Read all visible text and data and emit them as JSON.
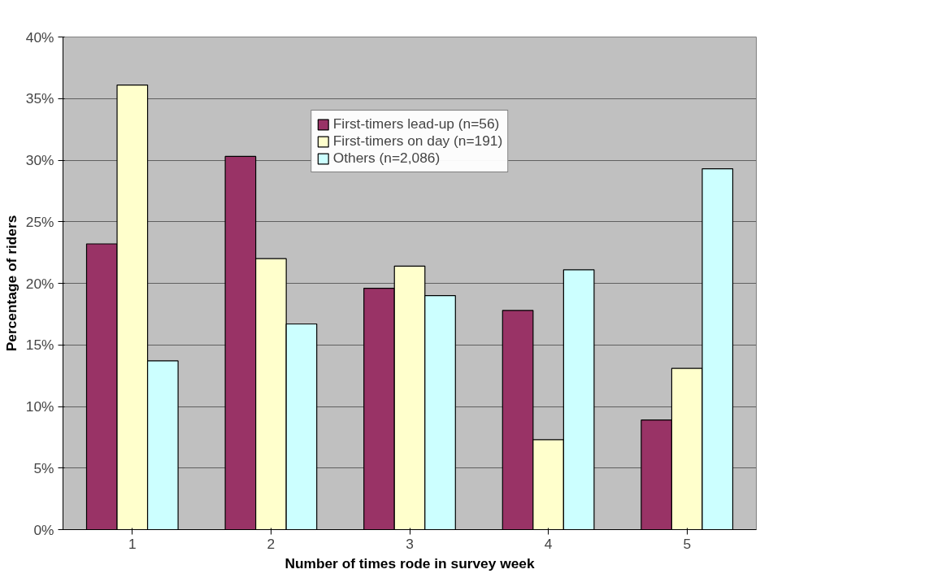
{
  "chart_data": {
    "type": "bar",
    "xlabel": "Number of times rode in survey week",
    "ylabel": "Percentage of riders",
    "categories": [
      "1",
      "2",
      "3",
      "4",
      "5"
    ],
    "series": [
      {
        "name": "First-timers lead-up (n=56)",
        "color": "#993366",
        "values": [
          23.2,
          30.3,
          19.6,
          17.8,
          8.9
        ]
      },
      {
        "name": "First-timers on day (n=191)",
        "color": "#ffffcc",
        "values": [
          36.1,
          22.0,
          21.4,
          7.3,
          13.1
        ]
      },
      {
        "name": "Others (n=2,086)",
        "color": "#ccffff",
        "values": [
          13.7,
          16.7,
          19.0,
          21.1,
          29.3
        ]
      }
    ],
    "ylim": [
      0,
      40
    ],
    "yticks": [
      {
        "value": 0,
        "label": "0%"
      },
      {
        "value": 5,
        "label": "5%"
      },
      {
        "value": 10,
        "label": "10%"
      },
      {
        "value": 15,
        "label": "15%"
      },
      {
        "value": 20,
        "label": "20%"
      },
      {
        "value": 25,
        "label": "25%"
      },
      {
        "value": 30,
        "label": "30%"
      },
      {
        "value": 35,
        "label": "35%"
      },
      {
        "value": 40,
        "label": "40%"
      }
    ],
    "grid": "y",
    "legend": "top"
  }
}
